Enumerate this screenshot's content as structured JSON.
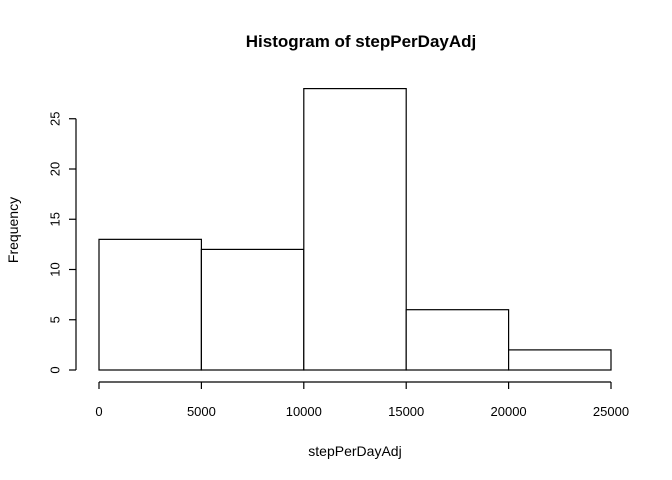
{
  "chart_data": {
    "type": "bar",
    "title": "Histogram of stepPerDayAdj",
    "xlabel": "stepPerDayAdj",
    "ylabel": "Frequency",
    "bins": [
      {
        "from": 0,
        "to": 5000,
        "count": 13
      },
      {
        "from": 5000,
        "to": 10000,
        "count": 12
      },
      {
        "from": 10000,
        "to": 15000,
        "count": 28
      },
      {
        "from": 15000,
        "to": 20000,
        "count": 6
      },
      {
        "from": 20000,
        "to": 25000,
        "count": 2
      }
    ],
    "xlim": [
      0,
      25000
    ],
    "ylim": [
      0,
      28
    ],
    "x_ticks": [
      0,
      5000,
      10000,
      15000,
      20000,
      25000
    ],
    "x_tick_labels": [
      "0",
      "5000",
      "10000",
      "15000",
      "20000",
      "25000"
    ],
    "y_ticks": [
      0,
      5,
      10,
      15,
      20,
      25
    ],
    "y_tick_labels": [
      "0",
      "5",
      "10",
      "15",
      "20",
      "25"
    ],
    "grid": false,
    "bar_fill": "#ffffff",
    "bar_stroke": "#000000"
  }
}
